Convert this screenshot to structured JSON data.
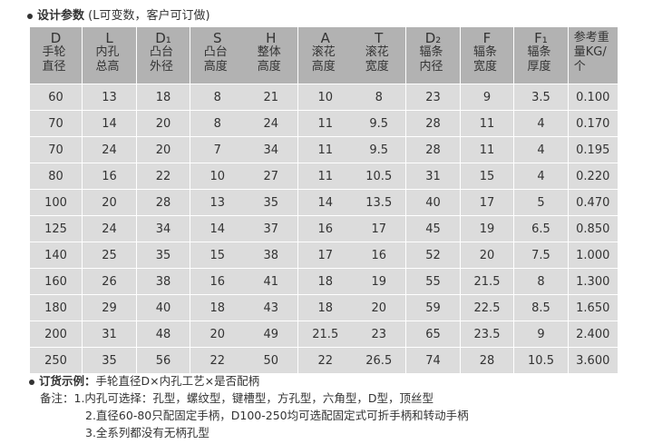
{
  "title": {
    "bold": "设计参数",
    "rest": "(L可变数，客户可订做)"
  },
  "columns": [
    {
      "sym": "D",
      "label": "手轮直径"
    },
    {
      "sym": "L",
      "label": "内孔总高"
    },
    {
      "sym": "D₁",
      "label": "凸台外径"
    },
    {
      "sym": "S",
      "label": "凸台高度"
    },
    {
      "sym": "H",
      "label": "整体高度"
    },
    {
      "sym": "A",
      "label": "滚花高度"
    },
    {
      "sym": "T",
      "label": "滚花宽度"
    },
    {
      "sym": "D₂",
      "label": "辐条内径"
    },
    {
      "sym": "F",
      "label": "辐条宽度"
    },
    {
      "sym": "F₁",
      "label": "辐条厚度"
    },
    {
      "sym": "",
      "label": "参考重量KG/个"
    }
  ],
  "rows": [
    [
      "60",
      "13",
      "18",
      "8",
      "21",
      "10",
      "8",
      "23",
      "9",
      "3.5",
      "0.100"
    ],
    [
      "70",
      "14",
      "20",
      "8",
      "24",
      "11",
      "9.5",
      "28",
      "11",
      "4",
      "0.170"
    ],
    [
      "70",
      "24",
      "20",
      "7",
      "34",
      "11",
      "9.5",
      "28",
      "11",
      "4",
      "0.195"
    ],
    [
      "80",
      "16",
      "22",
      "10",
      "27",
      "11",
      "10.5",
      "31",
      "15",
      "4",
      "0.220"
    ],
    [
      "100",
      "20",
      "28",
      "13",
      "35",
      "14",
      "13.5",
      "40",
      "17",
      "5",
      "0.470"
    ],
    [
      "125",
      "24",
      "34",
      "14",
      "37",
      "16",
      "17",
      "45",
      "19",
      "6.5",
      "0.850"
    ],
    [
      "140",
      "25",
      "35",
      "15",
      "38",
      "17",
      "16",
      "52",
      "20",
      "7.5",
      "1.000"
    ],
    [
      "160",
      "26",
      "38",
      "16",
      "41",
      "18",
      "19",
      "55",
      "21.5",
      "8",
      "1.300"
    ],
    [
      "180",
      "29",
      "40",
      "18",
      "43",
      "18",
      "20",
      "59",
      "22.5",
      "8.5",
      "1.650"
    ],
    [
      "200",
      "31",
      "48",
      "20",
      "49",
      "21.5",
      "23",
      "65",
      "23.5",
      "9",
      "2.400"
    ],
    [
      "250",
      "35",
      "56",
      "22",
      "50",
      "22",
      "26.5",
      "74",
      "28",
      "10.5",
      "3.600"
    ]
  ],
  "order": {
    "bold": "订货示例：",
    "text": "手轮直径D×内孔工艺×是否配柄"
  },
  "notes": [
    "备注：1.内孔可选择：孔型，螺纹型，键槽型，方孔型，六角型，D型，顶丝型",
    "2.直径60-80只配固定手柄，D100-250均可选配固定式可折手柄和转动手柄",
    "3.全系列都没有无柄孔型"
  ]
}
